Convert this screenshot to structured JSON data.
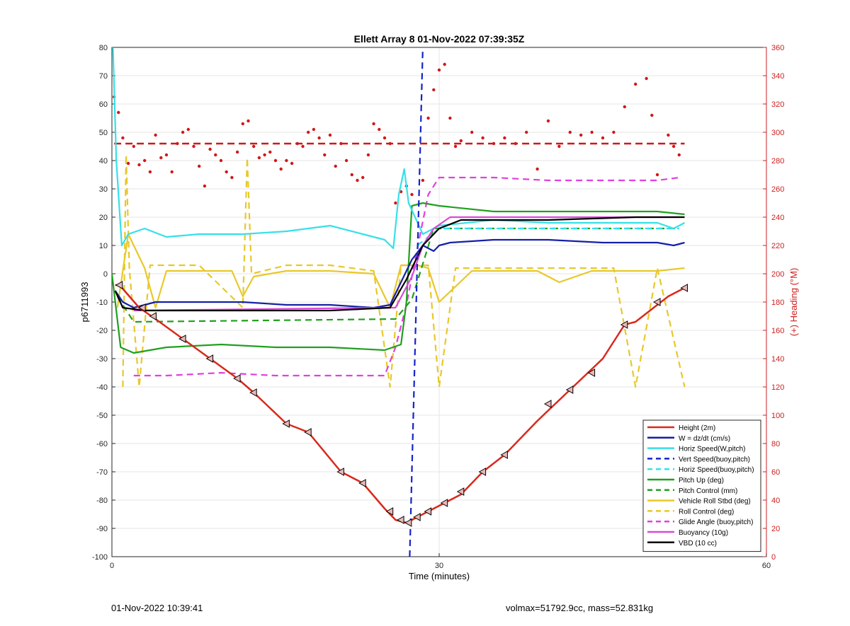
{
  "chart_data": {
    "type": "line",
    "title": "Ellett Array 8 01-Nov-2022 07:39:35Z",
    "xlabel": "Time (minutes)",
    "ylabel": "p6711993",
    "y2label": "(+) Heading (°M)",
    "xlim": [
      0,
      60
    ],
    "ylim": [
      -100,
      80
    ],
    "y2lim": [
      0,
      360
    ],
    "xticks": [
      0,
      30,
      60
    ],
    "yticks": [
      -100,
      -90,
      -80,
      -70,
      -60,
      -50,
      -40,
      -30,
      -20,
      -10,
      0,
      10,
      20,
      30,
      40,
      50,
      60,
      70,
      80
    ],
    "y2ticks": [
      0,
      20,
      40,
      60,
      80,
      100,
      120,
      140,
      160,
      180,
      200,
      220,
      240,
      260,
      280,
      300,
      320,
      340,
      360
    ],
    "grid": true,
    "legend_position": "lower-right",
    "colors": {
      "height": "#d9291c",
      "w": "#1520a6",
      "horiz": "#36e0e8",
      "vert_speed": "#1524c8",
      "pitch": "#20a020",
      "roll": "#e8c82a",
      "glide": "#e040e0",
      "buoy": "#d84ad8",
      "vbd": "#000000",
      "heading": "#d01818",
      "axis2": "#cc2020"
    },
    "series": [
      {
        "name": "Height (2m)",
        "style": "solid",
        "color": "#d9291c",
        "x": [
          0.3,
          0.7,
          2.5,
          4.0,
          6.5,
          9.0,
          11.5,
          13.0,
          16.0,
          18.0,
          21.0,
          23.0,
          25.0,
          26.0,
          27.0,
          28.0,
          30.0,
          32.0,
          34.0,
          36.0,
          39.0,
          42.0,
          45.0,
          47.0,
          48.0,
          51.0,
          52.5
        ],
        "y": [
          -4,
          -4,
          -12,
          -16,
          -23,
          -30,
          -37,
          -42,
          -53,
          -56,
          -70,
          -74,
          -83,
          -87,
          -88,
          -86,
          -82,
          -78,
          -70,
          -64,
          -52,
          -41,
          -30,
          -18,
          -17,
          -8,
          -5
        ]
      },
      {
        "name": "W = dz/dt (cm/s)",
        "style": "solid",
        "color": "#1520a6",
        "x": [
          0.3,
          1.0,
          2.0,
          4.0,
          8.0,
          12.0,
          16.0,
          20.0,
          24.0,
          25.5,
          26.5,
          27.5,
          28.5,
          29.5,
          30.0,
          31.0,
          35.0,
          40.0,
          45.0,
          50.0,
          51.5,
          52.5
        ],
        "y": [
          -6,
          -10,
          -12,
          -10,
          -10,
          -10,
          -11,
          -11,
          -12,
          -11,
          -3,
          5,
          10,
          8,
          10,
          11,
          12,
          12,
          11,
          11,
          10,
          11
        ]
      },
      {
        "name": "Horiz Speed(W,pitch)",
        "style": "solid",
        "color": "#36e0e8",
        "x": [
          0.1,
          0.4,
          0.9,
          1.5,
          3.0,
          5.0,
          8.0,
          12.0,
          16.0,
          20.0,
          23.0,
          25.0,
          25.8,
          26.3,
          26.8,
          27.2,
          28.5,
          30.0,
          35.0,
          40.0,
          45.0,
          50.0,
          51.5,
          52.5
        ],
        "y": [
          80,
          40,
          10,
          14,
          16,
          13,
          14,
          14,
          15,
          17,
          14,
          12,
          9,
          28,
          37,
          25,
          14,
          17,
          19,
          18,
          18,
          18,
          16,
          18
        ]
      },
      {
        "name": "Vert Speed(buoy,pitch)",
        "style": "dashed",
        "color": "#1524c8",
        "x": [
          27.3,
          28.5
        ],
        "y": [
          -100,
          80
        ]
      },
      {
        "name": "Horiz Speed(buoy,pitch)",
        "style": "dashed",
        "color": "#36e0e8",
        "x": [
          28.0,
          30.0,
          52.0
        ],
        "y": [
          10,
          16,
          16
        ]
      },
      {
        "name": "Pitch Up (deg)",
        "style": "solid",
        "color": "#20a020",
        "x": [
          0.0,
          0.8,
          2.0,
          5.0,
          10.0,
          15.0,
          20.0,
          25.0,
          26.5,
          27.0,
          27.5,
          28.5,
          30.0,
          35.0,
          40.0,
          45.0,
          50.0,
          52.5
        ],
        "y": [
          0,
          -26,
          -28,
          -26,
          -25,
          -26,
          -26,
          -27,
          -25,
          -10,
          24,
          25,
          24,
          22,
          22,
          22,
          22,
          21
        ]
      },
      {
        "name": "Pitch Control (mm)",
        "style": "dashed",
        "color": "#20a020",
        "x": [
          0.5,
          2.0,
          26.0,
          27.5,
          29.5,
          52.0
        ],
        "y": [
          -8,
          -17,
          -16,
          -9,
          16,
          16
        ]
      },
      {
        "name": "Vehicle Roll Stbd (deg)",
        "style": "solid",
        "color": "#e8c82a",
        "x": [
          0.5,
          1.5,
          3.0,
          4.0,
          5.0,
          8.0,
          11.0,
          12.0,
          13.0,
          16.0,
          20.0,
          24.0,
          25.5,
          26.5,
          28.0,
          29.0,
          30.0,
          33.0,
          36.0,
          39.0,
          41.0,
          44.0,
          47.0,
          50.0,
          52.5
        ],
        "y": [
          -12,
          14,
          2,
          -12,
          1,
          1,
          1,
          -8,
          -1,
          1,
          1,
          0,
          -12,
          3,
          3,
          2,
          -10,
          1,
          1,
          1,
          -3,
          1,
          1,
          1,
          2
        ]
      },
      {
        "name": "Roll Control (deg)",
        "style": "dashed",
        "color": "#e8c82a",
        "x": [
          1.0,
          1.3,
          1.6,
          2.5,
          3.5,
          5.0,
          8.0,
          12.0,
          12.4,
          12.8,
          16.0,
          20.0,
          24.0,
          25.5,
          26.5,
          29.0,
          30.0,
          31.5,
          32.5,
          36.0,
          40.0,
          42.0,
          46.0,
          48.0,
          50.0,
          52.5
        ],
        "y": [
          -40,
          42,
          2,
          -40,
          3,
          3,
          3,
          -12,
          41,
          0,
          3,
          3,
          1,
          -40,
          3,
          3,
          -40,
          2,
          2,
          2,
          2,
          2,
          2,
          -40,
          2,
          -40
        ]
      },
      {
        "name": "Glide Angle (buoy,pitch)",
        "style": "dashed",
        "color": "#e040e0",
        "x": [
          2.0,
          5.0,
          10.0,
          15.0,
          20.0,
          25.0,
          26.0,
          27.0,
          28.0,
          29.0,
          30.0,
          35.0,
          40.0,
          45.0,
          50.0,
          52.0
        ],
        "y": [
          -36,
          -36,
          -35,
          -36,
          -36,
          -36,
          -26,
          -11,
          9,
          28,
          34,
          34,
          33,
          33,
          33,
          34
        ]
      },
      {
        "name": "Buoyancy (10g)",
        "style": "solid",
        "color": "#d84ad8",
        "x": [
          2.0,
          25.0,
          26.0,
          27.5,
          28.5,
          29.5,
          31.0,
          52.0
        ],
        "y": [
          -13,
          -12,
          -12,
          -1,
          10,
          16,
          20,
          20
        ]
      },
      {
        "name": "VBD (10 cc)",
        "style": "solid",
        "color": "#000000",
        "x": [
          0.3,
          1.0,
          3.0,
          10.0,
          20.0,
          25.5,
          27.0,
          28.5,
          30.0,
          32.0,
          40.0,
          48.0,
          52.5
        ],
        "y": [
          -6,
          -12,
          -13,
          -13,
          -13,
          -12,
          -2,
          10,
          16,
          19,
          19,
          20,
          20
        ]
      }
    ],
    "heading_mean_line": {
      "axis": "right",
      "y": 292,
      "style": "dashed",
      "color": "#d01818"
    },
    "heading_points": {
      "axis": "right",
      "x": [
        0.2,
        0.6,
        1.0,
        1.5,
        2.0,
        2.5,
        3.0,
        3.5,
        4.0,
        4.5,
        5.0,
        5.5,
        6.0,
        6.5,
        7.0,
        7.5,
        8.0,
        8.5,
        9.0,
        9.5,
        10.0,
        10.5,
        11.0,
        11.5,
        12.0,
        12.5,
        13.0,
        13.5,
        14.0,
        14.5,
        15.0,
        15.5,
        16.0,
        16.5,
        17.0,
        17.5,
        18.0,
        18.5,
        19.0,
        19.5,
        20.0,
        20.5,
        21.0,
        21.5,
        22.0,
        22.5,
        23.0,
        23.5,
        24.0,
        24.5,
        25.0,
        25.5,
        26.0,
        26.5,
        27.0,
        27.5,
        28.5,
        29.0,
        29.5,
        30.0,
        30.5,
        31.0,
        31.5,
        32.0,
        33.0,
        34.0,
        35.0,
        36.0,
        37.0,
        38.0,
        39.0,
        40.0,
        41.0,
        42.0,
        43.0,
        44.0,
        45.0,
        46.0,
        47.0,
        48.0,
        49.0,
        49.5,
        50.0,
        51.0,
        51.5,
        52.0
      ],
      "y": [
        325,
        314,
        296,
        278,
        290,
        277,
        280,
        272,
        298,
        282,
        284,
        272,
        292,
        300,
        302,
        290,
        276,
        262,
        288,
        284,
        280,
        272,
        268,
        286,
        306,
        308,
        290,
        282,
        284,
        286,
        280,
        274,
        280,
        278,
        292,
        290,
        300,
        302,
        296,
        284,
        298,
        276,
        292,
        280,
        270,
        266,
        268,
        284,
        306,
        302,
        296,
        292,
        250,
        258,
        262,
        256,
        266,
        310,
        330,
        344,
        348,
        310,
        290,
        294,
        300,
        296,
        292,
        296,
        292,
        300,
        274,
        308,
        290,
        300,
        298,
        300,
        296,
        300,
        318,
        334,
        338,
        312,
        270,
        298,
        290,
        284
      ]
    },
    "markers": {
      "note": "triangle markers along the Height trace",
      "x": [
        0.7,
        2.8,
        3.8,
        6.5,
        9.0,
        11.5,
        13.0,
        16.0,
        18.0,
        21.0,
        23.0,
        25.5,
        26.5,
        27.2,
        28.0,
        29.0,
        30.5,
        32.0,
        34.0,
        36.0,
        40.0,
        42.0,
        44.0,
        47.0,
        50.0,
        52.5
      ],
      "y": [
        -4,
        -12,
        -15,
        -23,
        -30,
        -37,
        -42,
        -53,
        -56,
        -70,
        -74,
        -84,
        -87,
        -88,
        -86,
        -84,
        -81,
        -77,
        -70,
        -64,
        -46,
        -41,
        -35,
        -18,
        -10,
        -5
      ]
    }
  },
  "footer": {
    "left": "01-Nov-2022 10:39:41",
    "right": "volmax=51792.9cc, mass=52.831kg"
  }
}
